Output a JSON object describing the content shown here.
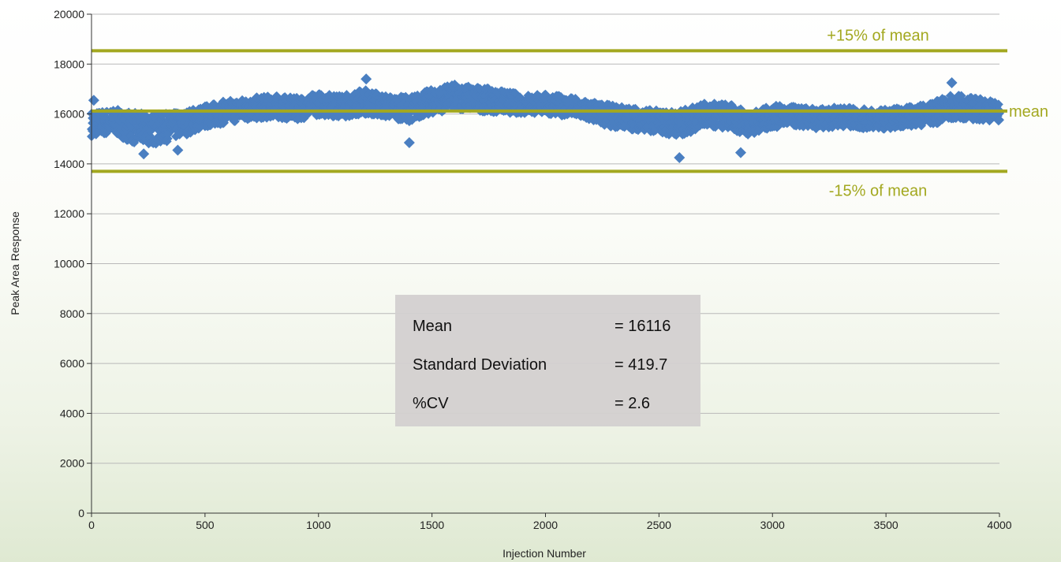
{
  "chart_data": {
    "type": "scatter",
    "title": "",
    "xlabel": "Injection Number",
    "ylabel": "Peak Area Response",
    "xlim": [
      0,
      4000
    ],
    "ylim": [
      0,
      20000
    ],
    "x_ticks": [
      "0",
      "500",
      "1000",
      "1500",
      "2000",
      "2500",
      "3000",
      "3500",
      "4000"
    ],
    "y_ticks": [
      "0",
      "2000",
      "4000",
      "6000",
      "8000",
      "10000",
      "12000",
      "14000",
      "16000",
      "18000",
      "20000"
    ],
    "grid": "horizontal",
    "marker_color": "#4a7fc1",
    "reference_color": "#a3a820",
    "series": [
      {
        "x": [
          0,
          100,
          200,
          300,
          400,
          500,
          600,
          700,
          800,
          900,
          1000,
          1100,
          1200,
          1300,
          1400,
          1500,
          1600,
          1700,
          1800,
          1900,
          2000,
          2100,
          2200,
          2300,
          2400,
          2500,
          2600,
          2700,
          2800,
          2900,
          3000,
          3100,
          3200,
          3300,
          3400,
          3500,
          3600,
          3700,
          3800,
          3900,
          4000
        ],
        "y": [
          15600,
          15700,
          15400,
          15400,
          15600,
          15900,
          16100,
          16200,
          16300,
          16200,
          16400,
          16300,
          16500,
          16300,
          16200,
          16500,
          16700,
          16600,
          16500,
          16400,
          16400,
          16300,
          16100,
          15900,
          15800,
          15700,
          15600,
          16000,
          15900,
          15600,
          15900,
          15900,
          15800,
          15900,
          15800,
          15800,
          15900,
          16000,
          16300,
          16200,
          16100
        ],
        "spread": [
          500,
          500,
          650,
          600,
          500,
          450,
          450,
          450,
          450,
          450,
          450,
          450,
          500,
          450,
          500,
          500,
          500,
          500,
          450,
          400,
          400,
          400,
          400,
          450,
          450,
          450,
          550,
          450,
          550,
          450,
          450,
          400,
          400,
          400,
          400,
          400,
          400,
          450,
          500,
          450,
          400
        ]
      }
    ],
    "outliers": [
      {
        "x": 10,
        "y": 16550
      },
      {
        "x": 230,
        "y": 14400
      },
      {
        "x": 380,
        "y": 14550
      },
      {
        "x": 1210,
        "y": 17400
      },
      {
        "x": 1400,
        "y": 14850
      },
      {
        "x": 2590,
        "y": 14250
      },
      {
        "x": 2860,
        "y": 14450
      },
      {
        "x": 3790,
        "y": 17250
      }
    ],
    "reference_lines": [
      {
        "label": "+15% of mean",
        "y": 18533
      },
      {
        "label": "mean",
        "y": 16116
      },
      {
        "label": "-15% of mean",
        "y": 13699
      }
    ],
    "stats": [
      {
        "label": "Mean",
        "value": "= 16116"
      },
      {
        "label": "Standard Deviation",
        "value": "= 419.7"
      },
      {
        "label": "%CV",
        "value": "= 2.6"
      }
    ]
  }
}
